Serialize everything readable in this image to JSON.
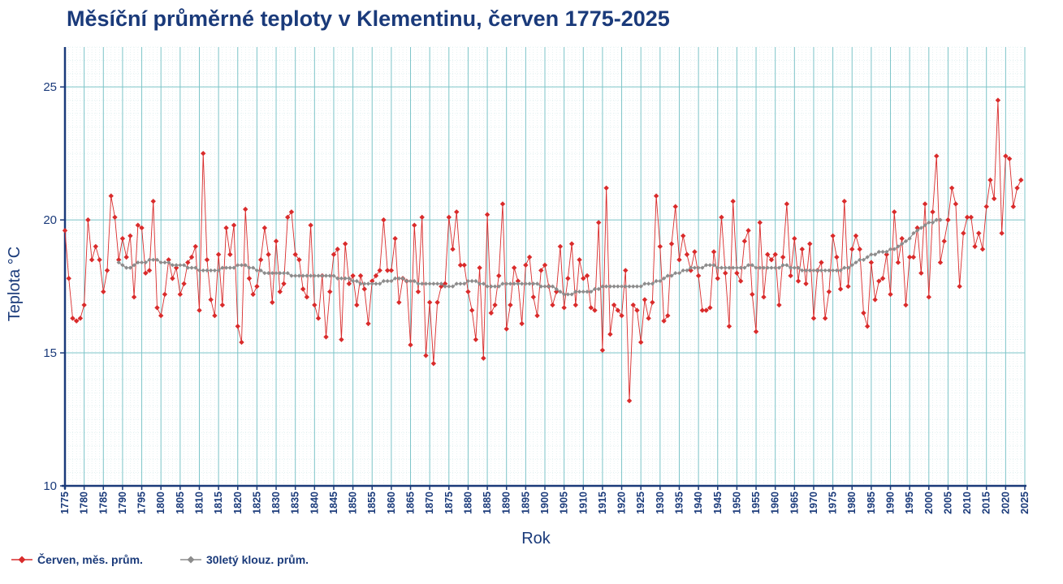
{
  "chart_data": {
    "type": "line",
    "title": "Měsíční průměrné teploty v Klementinu, červen 1775-2025",
    "xlabel": "Rok",
    "ylabel": "Teplota  °C",
    "xlim": [
      1775,
      2025
    ],
    "ylim": [
      10,
      26.5
    ],
    "yticks": [
      10,
      15,
      20,
      25
    ],
    "xticks": [
      1775,
      1780,
      1785,
      1790,
      1795,
      1800,
      1805,
      1810,
      1815,
      1820,
      1825,
      1830,
      1835,
      1840,
      1845,
      1850,
      1855,
      1860,
      1865,
      1870,
      1875,
      1880,
      1885,
      1890,
      1895,
      1900,
      1905,
      1910,
      1915,
      1920,
      1925,
      1930,
      1935,
      1940,
      1945,
      1950,
      1955,
      1960,
      1965,
      1970,
      1975,
      1980,
      1985,
      1990,
      1995,
      2000,
      2005,
      2010,
      2015,
      2020,
      2025
    ],
    "grid": true,
    "legend": "bottom-left",
    "series": [
      {
        "name": "Červen, měs. prům.",
        "color": "#d92b2b",
        "marker": "diamond",
        "x_start": 1775,
        "values": [
          19.6,
          17.8,
          16.3,
          16.2,
          16.3,
          16.8,
          20.0,
          18.5,
          19.0,
          18.5,
          17.3,
          18.1,
          20.9,
          20.1,
          18.5,
          19.3,
          18.6,
          19.4,
          17.1,
          19.8,
          19.7,
          18.0,
          18.1,
          20.7,
          16.7,
          16.4,
          17.2,
          18.5,
          17.8,
          18.2,
          17.2,
          17.6,
          18.4,
          18.6,
          19.0,
          16.6,
          22.5,
          18.5,
          17.0,
          16.4,
          18.7,
          16.8,
          19.7,
          18.7,
          19.8,
          16.0,
          15.4,
          20.4,
          17.8,
          17.2,
          17.5,
          18.5,
          19.7,
          18.7,
          16.9,
          19.2,
          17.3,
          17.6,
          20.1,
          20.3,
          18.7,
          18.5,
          17.4,
          17.1,
          19.8,
          16.8,
          16.3,
          17.9,
          15.6,
          17.3,
          18.7,
          18.9,
          15.5,
          19.1,
          17.6,
          17.9,
          16.8,
          17.9,
          17.4,
          16.1,
          17.7,
          17.9,
          18.1,
          20.0,
          18.1,
          18.1,
          19.3,
          16.9,
          17.8,
          17.7,
          15.3,
          19.8,
          17.3,
          20.1,
          14.9,
          16.9,
          14.6,
          16.9,
          17.5,
          17.6,
          20.1,
          18.9,
          20.3,
          18.3,
          18.3,
          17.3,
          16.6,
          15.5,
          18.2,
          14.8,
          20.2,
          16.5,
          16.8,
          17.9,
          20.6,
          15.9,
          16.8,
          18.2,
          17.7,
          16.1,
          18.3,
          18.6,
          17.1,
          16.4,
          18.1,
          18.3,
          17.5,
          16.8,
          17.3,
          19.0,
          16.7,
          17.8,
          19.1,
          16.8,
          18.5,
          17.8,
          17.9,
          16.7,
          16.6,
          19.9,
          15.1,
          21.2,
          15.7,
          16.8,
          16.6,
          16.4,
          18.1,
          13.2,
          16.8,
          16.6,
          15.4,
          17.0,
          16.3,
          16.9,
          20.9,
          19.0,
          16.2,
          16.4,
          19.1,
          20.5,
          18.5,
          19.4,
          18.7,
          18.1,
          18.8,
          17.9,
          16.6,
          16.6,
          16.7,
          18.8,
          17.8,
          20.1,
          18.0,
          16.0,
          20.7,
          18.0,
          17.7,
          19.2,
          19.6,
          17.2,
          15.8,
          19.9,
          17.1,
          18.7,
          18.5,
          18.7,
          16.8,
          18.6,
          20.6,
          17.9,
          19.3,
          17.7,
          18.9,
          17.6,
          19.1,
          16.3,
          18.1,
          18.4,
          16.3,
          17.3,
          19.4,
          18.6,
          17.4,
          20.7,
          17.5,
          18.9,
          19.4,
          18.9,
          16.5,
          16.0,
          18.4,
          17.0,
          17.7,
          17.8,
          18.7,
          17.2,
          20.3,
          18.4,
          19.3,
          16.8,
          18.6,
          18.6,
          19.7,
          18.0,
          20.6,
          17.1,
          20.3,
          22.4,
          18.4,
          19.2,
          20.0,
          21.2,
          20.6,
          17.5,
          19.5,
          20.1,
          20.1,
          19.0,
          19.5,
          18.9,
          20.5,
          21.5,
          20.8,
          24.5,
          19.5,
          22.4,
          22.3,
          20.5,
          21.2,
          21.5
        ]
      },
      {
        "name": "30letý klouz. prům.",
        "color": "#8c8c8c",
        "marker": "diamond",
        "x_start": 1789,
        "values": [
          18.4,
          18.3,
          18.2,
          18.2,
          18.3,
          18.4,
          18.4,
          18.4,
          18.5,
          18.5,
          18.5,
          18.4,
          18.4,
          18.4,
          18.3,
          18.3,
          18.3,
          18.3,
          18.2,
          18.2,
          18.2,
          18.1,
          18.1,
          18.1,
          18.1,
          18.1,
          18.1,
          18.2,
          18.2,
          18.2,
          18.2,
          18.3,
          18.3,
          18.3,
          18.2,
          18.2,
          18.1,
          18.1,
          18.0,
          18.0,
          18.0,
          18.0,
          18.0,
          18.0,
          18.0,
          17.9,
          17.9,
          17.9,
          17.9,
          17.9,
          17.9,
          17.9,
          17.9,
          17.9,
          17.9,
          17.9,
          17.9,
          17.8,
          17.8,
          17.8,
          17.8,
          17.7,
          17.7,
          17.6,
          17.6,
          17.6,
          17.6,
          17.6,
          17.6,
          17.7,
          17.7,
          17.7,
          17.8,
          17.8,
          17.8,
          17.7,
          17.7,
          17.7,
          17.6,
          17.6,
          17.6,
          17.6,
          17.6,
          17.6,
          17.6,
          17.5,
          17.5,
          17.5,
          17.6,
          17.6,
          17.6,
          17.7,
          17.7,
          17.7,
          17.6,
          17.6,
          17.5,
          17.5,
          17.5,
          17.5,
          17.6,
          17.6,
          17.6,
          17.6,
          17.6,
          17.6,
          17.6,
          17.6,
          17.6,
          17.6,
          17.5,
          17.5,
          17.5,
          17.5,
          17.4,
          17.3,
          17.2,
          17.2,
          17.2,
          17.3,
          17.3,
          17.3,
          17.3,
          17.3,
          17.4,
          17.4,
          17.5,
          17.5,
          17.5,
          17.5,
          17.5,
          17.5,
          17.5,
          17.5,
          17.5,
          17.5,
          17.5,
          17.6,
          17.6,
          17.6,
          17.7,
          17.7,
          17.8,
          17.9,
          17.9,
          18.0,
          18.0,
          18.1,
          18.1,
          18.2,
          18.2,
          18.2,
          18.2,
          18.3,
          18.3,
          18.3,
          18.2,
          18.2,
          18.2,
          18.2,
          18.2,
          18.2,
          18.2,
          18.2,
          18.3,
          18.3,
          18.2,
          18.2,
          18.2,
          18.2,
          18.2,
          18.2,
          18.2,
          18.3,
          18.3,
          18.2,
          18.2,
          18.2,
          18.1,
          18.1,
          18.1,
          18.1,
          18.1,
          18.1,
          18.1,
          18.1,
          18.1,
          18.1,
          18.1,
          18.2,
          18.2,
          18.3,
          18.4,
          18.5,
          18.5,
          18.6,
          18.7,
          18.7,
          18.8,
          18.8,
          18.8,
          18.9,
          18.9,
          19.0,
          19.1,
          19.2,
          19.3,
          19.5,
          19.6,
          19.7,
          19.8,
          19.9,
          19.9,
          20.0,
          20.0
        ]
      }
    ]
  }
}
